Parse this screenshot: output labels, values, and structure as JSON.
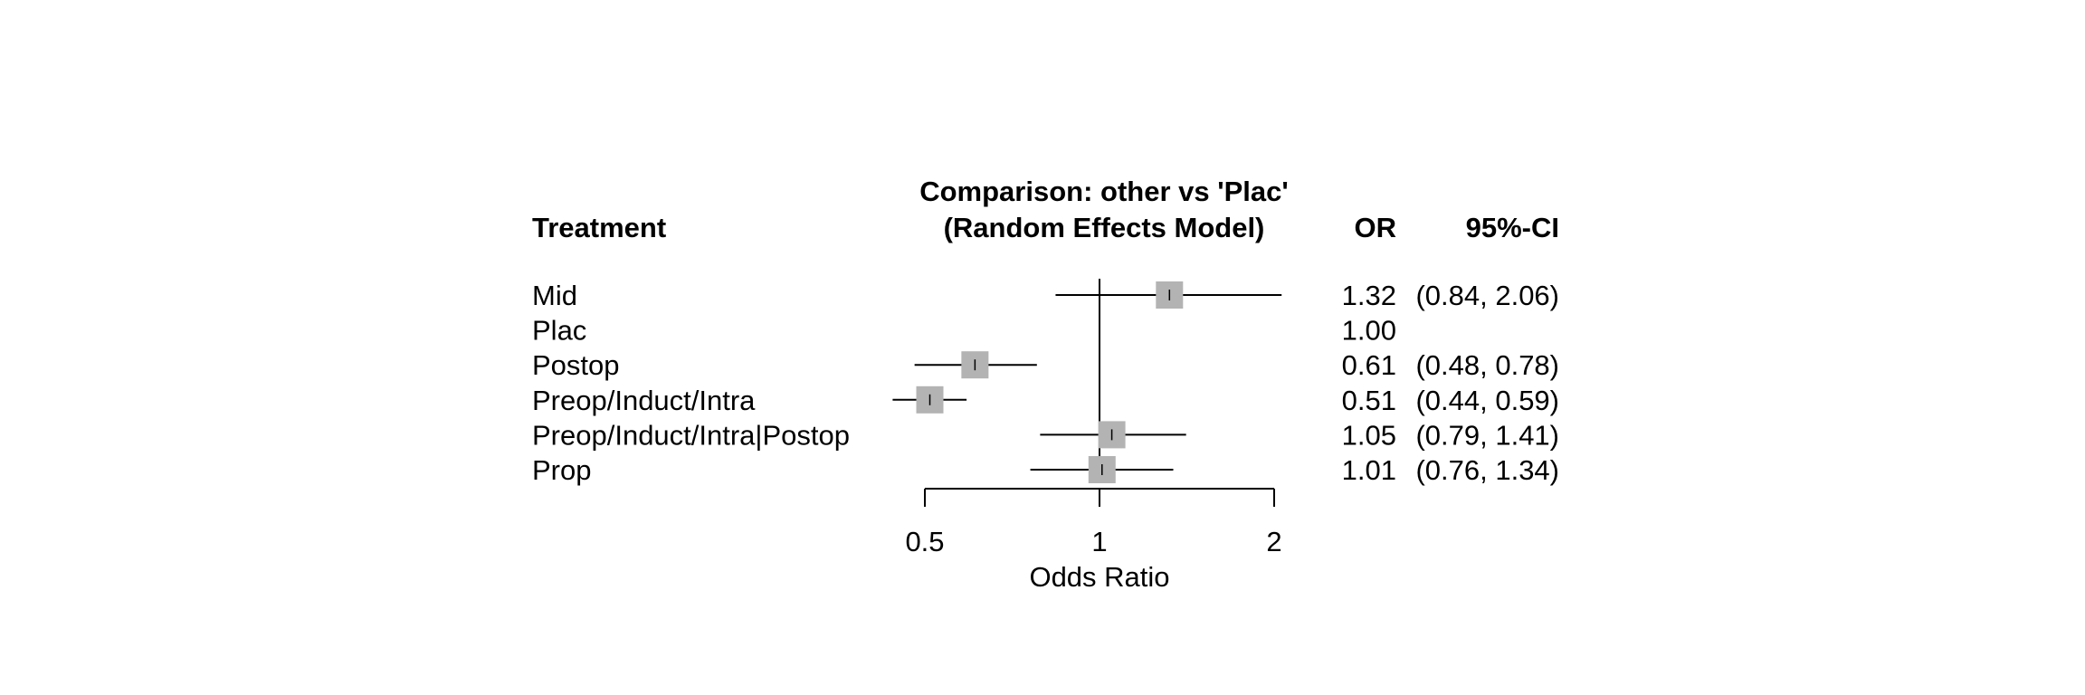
{
  "chart_data": {
    "type": "forest",
    "title_line1": "Comparison: other vs 'Plac'",
    "title_line2": "(Random Effects Model)",
    "col_treatment": "Treatment",
    "col_or": "OR",
    "col_ci": "95%-CI",
    "xlabel": "Odds Ratio",
    "xscale": "log",
    "xlim": [
      0.5,
      2
    ],
    "ticks": [
      {
        "value": 0.5,
        "label": "0.5"
      },
      {
        "value": 1,
        "label": "1"
      },
      {
        "value": 2,
        "label": "2"
      }
    ],
    "reference_line": 1,
    "rows": [
      {
        "treatment": "Mid",
        "or": 1.32,
        "lower": 0.84,
        "upper": 2.06,
        "or_text": "1.32",
        "ci_text": "(0.84, 2.06)",
        "weight": 0.6
      },
      {
        "treatment": "Plac",
        "or": 1.0,
        "lower": null,
        "upper": null,
        "or_text": "1.00",
        "ci_text": "",
        "weight": 0
      },
      {
        "treatment": "Postop",
        "or": 0.61,
        "lower": 0.48,
        "upper": 0.78,
        "or_text": "0.61",
        "ci_text": "(0.48, 0.78)",
        "weight": 0.6
      },
      {
        "treatment": "Preop/Induct/Intra",
        "or": 0.51,
        "lower": 0.44,
        "upper": 0.59,
        "or_text": "0.51",
        "ci_text": "(0.44, 0.59)",
        "weight": 0.6
      },
      {
        "treatment": "Preop/Induct/Intra|Postop",
        "or": 1.05,
        "lower": 0.79,
        "upper": 1.41,
        "or_text": "1.05",
        "ci_text": "(0.79, 1.41)",
        "weight": 0.6
      },
      {
        "treatment": "Prop",
        "or": 1.01,
        "lower": 0.76,
        "upper": 1.34,
        "or_text": "1.01",
        "ci_text": "(0.76, 1.34)",
        "weight": 0.6
      }
    ],
    "box_color": "#b3b3b3",
    "line_color": "#000000"
  }
}
